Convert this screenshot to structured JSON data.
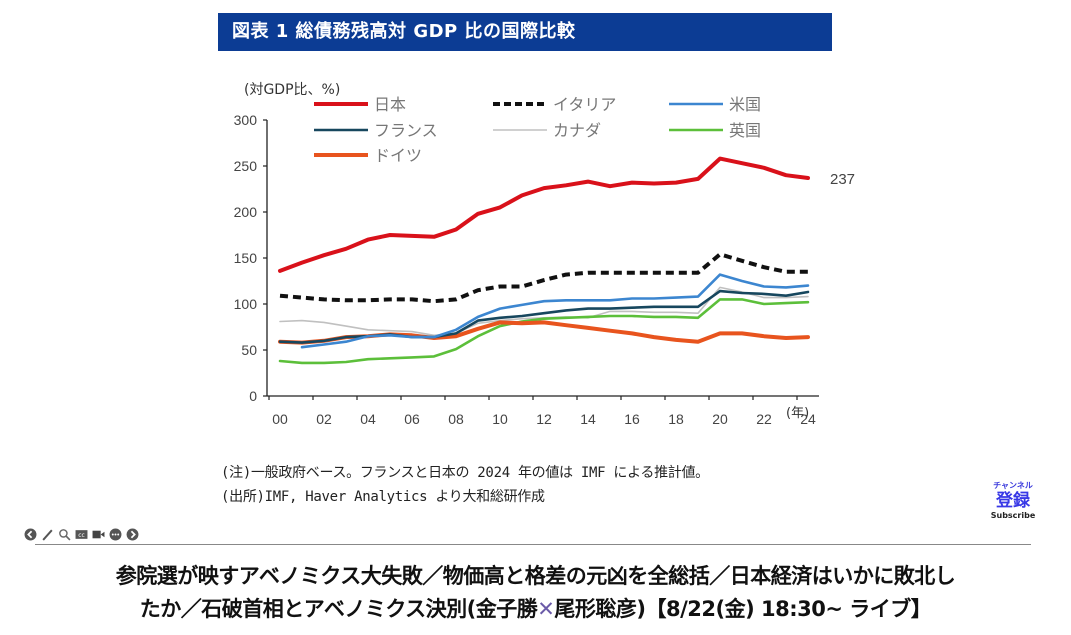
{
  "chart_title": "図表 1  総債務残高対 GDP 比の国際比較",
  "chart_data": {
    "type": "line",
    "title": "図表 1 総債務残高対 GDP 比の国際比較",
    "ylabel": "(対GDP比、%)",
    "xlabel": "(年)",
    "ylim": [
      0,
      300
    ],
    "yticks": [
      0,
      50,
      100,
      150,
      200,
      250,
      300
    ],
    "x": [
      2000,
      2001,
      2002,
      2003,
      2004,
      2005,
      2006,
      2007,
      2008,
      2009,
      2010,
      2011,
      2012,
      2013,
      2014,
      2015,
      2016,
      2017,
      2018,
      2019,
      2020,
      2021,
      2022,
      2023,
      2024
    ],
    "xtick_labels": [
      "00",
      "02",
      "04",
      "06",
      "08",
      "10",
      "12",
      "14",
      "16",
      "18",
      "20",
      "22",
      "24"
    ],
    "grid": false,
    "legend_position": "top",
    "annotations": [
      {
        "series": "日本",
        "x": 2024,
        "text": "237"
      }
    ],
    "series": [
      {
        "name": "日本",
        "color": "#d9111a",
        "style": "solid",
        "weight": "thick",
        "values": [
          136,
          145,
          153,
          160,
          170,
          175,
          174,
          173,
          181,
          198,
          205,
          218,
          226,
          229,
          233,
          228,
          232,
          231,
          232,
          236,
          258,
          253,
          248,
          240,
          237
        ]
      },
      {
        "name": "イタリア",
        "color": "#111111",
        "style": "dashed",
        "weight": "thick",
        "values": [
          109,
          107,
          105,
          104,
          104,
          105,
          105,
          103,
          105,
          115,
          119,
          119,
          126,
          132,
          134,
          134,
          134,
          134,
          134,
          134,
          154,
          147,
          140,
          135,
          135
        ]
      },
      {
        "name": "米国",
        "color": "#3c86d0",
        "style": "solid",
        "weight": "medium",
        "values": [
          null,
          53,
          56,
          59,
          65,
          66,
          64,
          64,
          72,
          86,
          95,
          99,
          103,
          104,
          104,
          104,
          106,
          106,
          107,
          108,
          132,
          125,
          119,
          118,
          120
        ]
      },
      {
        "name": "フランス",
        "color": "#17475e",
        "style": "solid",
        "weight": "medium",
        "values": [
          59,
          58,
          60,
          64,
          65,
          67,
          64,
          64,
          68,
          82,
          85,
          87,
          90,
          93,
          95,
          95,
          96,
          97,
          97,
          97,
          114,
          112,
          111,
          109,
          113
        ]
      },
      {
        "name": "カナダ",
        "color": "#c0c0c0",
        "style": "solid",
        "weight": "thin",
        "values": [
          81,
          82,
          80,
          76,
          72,
          71,
          70,
          66,
          68,
          79,
          82,
          84,
          85,
          86,
          85,
          92,
          92,
          91,
          91,
          90,
          118,
          113,
          107,
          107,
          108
        ]
      },
      {
        "name": "英国",
        "color": "#5cbf3a",
        "style": "solid",
        "weight": "medium",
        "values": [
          38,
          36,
          36,
          37,
          40,
          41,
          42,
          43,
          51,
          65,
          76,
          81,
          84,
          85,
          86,
          87,
          87,
          86,
          86,
          85,
          105,
          105,
          100,
          101,
          102
        ]
      },
      {
        "name": "ドイツ",
        "color": "#e8541e",
        "style": "solid",
        "weight": "thick",
        "values": [
          59,
          58,
          60,
          64,
          65,
          67,
          66,
          63,
          65,
          73,
          80,
          79,
          80,
          77,
          74,
          71,
          68,
          64,
          61,
          59,
          68,
          68,
          65,
          63,
          64
        ]
      }
    ]
  },
  "notes": {
    "note": "(注)一般政府ベース。フランスと日本の 2024 年の値は IMF による推計値。",
    "source": "(出所)IMF, Haver Analytics より大和総研作成"
  },
  "subscribe": {
    "channel": "チャンネル",
    "register": "登録",
    "label": "Subscribe"
  },
  "toolbar": [
    "prev-icon",
    "pen-icon",
    "search-icon",
    "cc-icon",
    "video-icon",
    "more-icon",
    "next-icon"
  ],
  "video_title": {
    "line1": "参院選が映すアベノミクス大失敗／物価高と格差の元凶を全総括／日本経済はいかに敗北し",
    "line2_a": "たか／石破首相とアベノミクス決別(金子勝",
    "line2_x": "✕",
    "line2_b": "尾形聡彦)【8/22(金) 18:30~ ライブ】"
  }
}
